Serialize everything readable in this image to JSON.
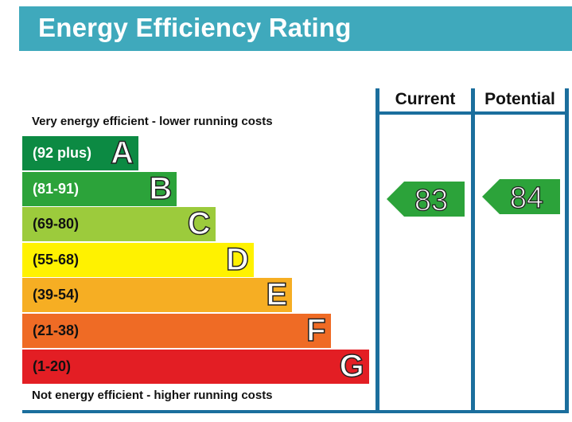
{
  "title": "Energy Efficiency Rating",
  "columns": {
    "current": "Current",
    "potential": "Potential"
  },
  "top_note": "Very energy efficient - lower running costs",
  "bottom_note": "Not energy efficient - higher running costs",
  "chart_data": {
    "type": "bar",
    "categories": [
      "A",
      "B",
      "C",
      "D",
      "E",
      "F",
      "G"
    ],
    "bands": [
      {
        "letter": "A",
        "range": "(92 plus)",
        "min": 92,
        "max": 100,
        "color": "#0c8a43",
        "text_color": "#ffffff"
      },
      {
        "letter": "B",
        "range": "(81-91)",
        "min": 81,
        "max": 91,
        "color": "#2ca33a",
        "text_color": "#ffffff"
      },
      {
        "letter": "C",
        "range": "(69-80)",
        "min": 69,
        "max": 80,
        "color": "#9ccb3c",
        "text_color": "#111111"
      },
      {
        "letter": "D",
        "range": "(55-68)",
        "min": 55,
        "max": 68,
        "color": "#fff200",
        "text_color": "#111111"
      },
      {
        "letter": "E",
        "range": "(39-54)",
        "min": 39,
        "max": 54,
        "color": "#f6ae23",
        "text_color": "#111111"
      },
      {
        "letter": "F",
        "range": "(21-38)",
        "min": 21,
        "max": 38,
        "color": "#ef6b25",
        "text_color": "#111111"
      },
      {
        "letter": "G",
        "range": "(1-20)",
        "min": 1,
        "max": 20,
        "color": "#e31e24",
        "text_color": "#111111"
      }
    ],
    "current": {
      "value": 83,
      "band": "B",
      "color": "#2ca33a"
    },
    "potential": {
      "value": 84,
      "band": "B",
      "color": "#2ca33a"
    }
  }
}
